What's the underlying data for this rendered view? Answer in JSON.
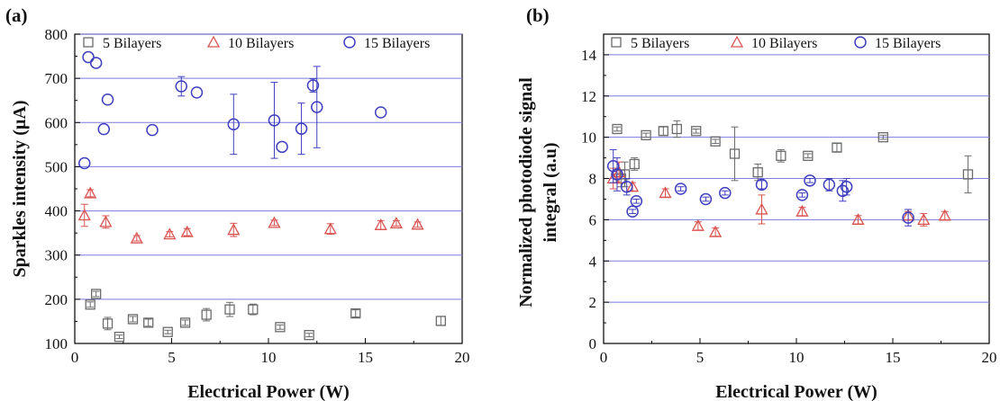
{
  "figure": {
    "panel_labels": [
      "(a)",
      "(b)"
    ]
  },
  "chart_data": [
    {
      "type": "scatter",
      "panel": "(a)",
      "title": "",
      "xlabel": "Electrical Power (W)",
      "ylabel": "Sparkles intensity (µA)",
      "xlim": [
        0,
        20
      ],
      "ylim": [
        100,
        800
      ],
      "xticks": [
        0,
        5,
        10,
        15,
        20
      ],
      "yticks": [
        100,
        200,
        300,
        400,
        500,
        600,
        700,
        800
      ],
      "grid": "horizontal",
      "legend_position": "top",
      "series": [
        {
          "name": "5 Bilayers",
          "marker": "square",
          "color": "#6b6b6b",
          "points": [
            {
              "x": 0.8,
              "y": 188,
              "err": 6
            },
            {
              "x": 1.1,
              "y": 212,
              "err": 6
            },
            {
              "x": 1.7,
              "y": 145,
              "err": 14
            },
            {
              "x": 2.3,
              "y": 115,
              "err": 4
            },
            {
              "x": 3.0,
              "y": 155,
              "err": 6
            },
            {
              "x": 3.8,
              "y": 147,
              "err": 8
            },
            {
              "x": 4.8,
              "y": 126,
              "err": 4
            },
            {
              "x": 5.7,
              "y": 147,
              "err": 6
            },
            {
              "x": 6.8,
              "y": 165,
              "err": 14
            },
            {
              "x": 8.0,
              "y": 177,
              "err": 16
            },
            {
              "x": 9.2,
              "y": 177,
              "err": 12
            },
            {
              "x": 10.6,
              "y": 137,
              "err": 5
            },
            {
              "x": 12.1,
              "y": 119,
              "err": 4
            },
            {
              "x": 14.5,
              "y": 168,
              "err": 8
            },
            {
              "x": 18.9,
              "y": 151,
              "err": 10
            }
          ]
        },
        {
          "name": "10 Bilayers",
          "marker": "triangle",
          "color": "#d9534f",
          "points": [
            {
              "x": 0.5,
              "y": 390,
              "err": 25
            },
            {
              "x": 0.8,
              "y": 440,
              "err": 8
            },
            {
              "x": 1.6,
              "y": 375,
              "err": 14
            },
            {
              "x": 3.2,
              "y": 338,
              "err": 6
            },
            {
              "x": 4.9,
              "y": 347,
              "err": 6
            },
            {
              "x": 5.8,
              "y": 352,
              "err": 8
            },
            {
              "x": 8.2,
              "y": 357,
              "err": 15
            },
            {
              "x": 10.3,
              "y": 373,
              "err": 6
            },
            {
              "x": 13.2,
              "y": 359,
              "err": 12
            },
            {
              "x": 15.8,
              "y": 368,
              "err": 10
            },
            {
              "x": 16.6,
              "y": 372,
              "err": 6
            },
            {
              "x": 17.7,
              "y": 369,
              "err": 6
            }
          ]
        },
        {
          "name": "15 Bilayers",
          "marker": "circle",
          "color": "#3f3fbf",
          "points": [
            {
              "x": 0.5,
              "y": 508,
              "err": 0
            },
            {
              "x": 0.7,
              "y": 748,
              "err": 0
            },
            {
              "x": 1.1,
              "y": 735,
              "err": 0
            },
            {
              "x": 1.5,
              "y": 585,
              "err": 0
            },
            {
              "x": 1.7,
              "y": 652,
              "err": 0
            },
            {
              "x": 4.0,
              "y": 583,
              "err": 0
            },
            {
              "x": 5.5,
              "y": 682,
              "err": 22
            },
            {
              "x": 6.3,
              "y": 668,
              "err": 0
            },
            {
              "x": 8.2,
              "y": 596,
              "err": 68
            },
            {
              "x": 10.3,
              "y": 605,
              "err": 86
            },
            {
              "x": 10.7,
              "y": 545,
              "err": 0
            },
            {
              "x": 11.7,
              "y": 586,
              "err": 58
            },
            {
              "x": 12.3,
              "y": 684,
              "err": 15
            },
            {
              "x": 12.5,
              "y": 635,
              "err": 92
            },
            {
              "x": 15.8,
              "y": 623,
              "err": 0
            }
          ]
        }
      ]
    },
    {
      "type": "scatter",
      "panel": "(b)",
      "title": "",
      "xlabel": "Electrical Power (W)",
      "ylabel": "Normalized photodiode signal integral (a.u)",
      "xlim": [
        0,
        20
      ],
      "ylim": [
        0,
        15
      ],
      "xticks": [
        0,
        5,
        10,
        15,
        20
      ],
      "yticks": [
        0,
        2,
        4,
        6,
        8,
        10,
        12,
        14
      ],
      "grid": "horizontal",
      "legend_position": "top",
      "series": [
        {
          "name": "5 Bilayers",
          "marker": "square",
          "color": "#6b6b6b",
          "points": [
            {
              "x": 0.7,
              "y": 10.4,
              "err": 0.1
            },
            {
              "x": 0.9,
              "y": 8.0,
              "err": 0.4
            },
            {
              "x": 1.1,
              "y": 8.2,
              "err": 0.6
            },
            {
              "x": 1.6,
              "y": 8.7,
              "err": 0.3
            },
            {
              "x": 2.2,
              "y": 10.1,
              "err": 0.1
            },
            {
              "x": 3.1,
              "y": 10.3,
              "err": 0.2
            },
            {
              "x": 3.8,
              "y": 10.4,
              "err": 0.4
            },
            {
              "x": 4.8,
              "y": 10.3,
              "err": 0.1
            },
            {
              "x": 5.8,
              "y": 9.8,
              "err": 0.1
            },
            {
              "x": 6.8,
              "y": 9.2,
              "err": 1.3
            },
            {
              "x": 8.0,
              "y": 8.3,
              "err": 0.4
            },
            {
              "x": 9.2,
              "y": 9.1,
              "err": 0.3
            },
            {
              "x": 10.6,
              "y": 9.1,
              "err": 0.1
            },
            {
              "x": 12.1,
              "y": 9.5,
              "err": 0.2
            },
            {
              "x": 14.5,
              "y": 10.0,
              "err": 0.1
            },
            {
              "x": 18.9,
              "y": 8.2,
              "err": 0.9
            }
          ]
        },
        {
          "name": "10 Bilayers",
          "marker": "triangle",
          "color": "#d9534f",
          "points": [
            {
              "x": 0.5,
              "y": 8.0,
              "err": 0.5
            },
            {
              "x": 0.8,
              "y": 8.3,
              "err": 0.5
            },
            {
              "x": 1.5,
              "y": 7.6,
              "err": 0.2
            },
            {
              "x": 3.2,
              "y": 7.3,
              "err": 0.2
            },
            {
              "x": 4.9,
              "y": 5.7,
              "err": 0.2
            },
            {
              "x": 5.8,
              "y": 5.4,
              "err": 0.2
            },
            {
              "x": 8.2,
              "y": 6.5,
              "err": 0.7
            },
            {
              "x": 10.3,
              "y": 6.4,
              "err": 0.2
            },
            {
              "x": 13.2,
              "y": 6.0,
              "err": 0.2
            },
            {
              "x": 15.8,
              "y": 6.2,
              "err": 0.2
            },
            {
              "x": 16.6,
              "y": 6.0,
              "err": 0.3
            },
            {
              "x": 17.7,
              "y": 6.2,
              "err": 0.2
            }
          ]
        },
        {
          "name": "15 Bilayers",
          "marker": "circle",
          "color": "#3f3fbf",
          "points": [
            {
              "x": 0.5,
              "y": 8.6,
              "err": 0.8
            },
            {
              "x": 0.7,
              "y": 8.2,
              "err": 0.8
            },
            {
              "x": 1.2,
              "y": 7.6,
              "err": 0.4
            },
            {
              "x": 1.5,
              "y": 6.4,
              "err": 0.1
            },
            {
              "x": 1.7,
              "y": 6.9,
              "err": 0.1
            },
            {
              "x": 4.0,
              "y": 7.5,
              "err": 0.1
            },
            {
              "x": 5.3,
              "y": 7.0,
              "err": 0.1
            },
            {
              "x": 6.3,
              "y": 7.3,
              "err": 0.1
            },
            {
              "x": 8.2,
              "y": 7.7,
              "err": 0.2
            },
            {
              "x": 10.3,
              "y": 7.2,
              "err": 0.1
            },
            {
              "x": 10.7,
              "y": 7.9,
              "err": 0.1
            },
            {
              "x": 11.7,
              "y": 7.7,
              "err": 0.3
            },
            {
              "x": 12.4,
              "y": 7.4,
              "err": 0.5
            },
            {
              "x": 12.6,
              "y": 7.6,
              "err": 0.4
            },
            {
              "x": 15.8,
              "y": 6.1,
              "err": 0.4
            }
          ]
        }
      ]
    }
  ]
}
